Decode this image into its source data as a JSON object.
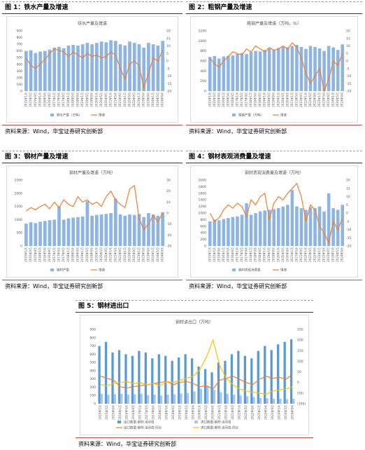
{
  "figures": [
    {
      "caption": "图 1：铁水产量及增速",
      "source": "资料来源：Wind，华宝证券研究创新部"
    },
    {
      "caption": "图 2：粗钢产量及增速",
      "source": "资料来源：Wind，华宝证券研究创新部"
    },
    {
      "caption": "图 3：钢材产量及增速",
      "source": "资料来源：Wind，华宝证券研究创新部"
    },
    {
      "caption": "图 4：钢材表观消费量及增速",
      "source": "资料来源：Wind，华宝证券研究创新部"
    },
    {
      "caption": "图 5：钢材进出口",
      "source": "资料来源：Wind，华宝证券研究创新部"
    }
  ],
  "chart_data": [
    {
      "type": "combo",
      "title": "铁水产量及增速",
      "grid": false,
      "categories": [
        "2015年1月",
        "2015年5月",
        "2015年9月",
        "2016年1月",
        "2016年5月",
        "2016年9月",
        "2017年1月",
        "2017年5月",
        "2017年9月",
        "2018年1月",
        "2018年5月",
        "2018年9月",
        "2019年1月",
        "2019年5月",
        "2019年9月",
        "2020年1月",
        "2020年5月",
        "2020年9月",
        "2021年1月",
        "2021年5月",
        "2021年9月",
        "2022年1月",
        "2022年5月",
        "2022年9月",
        "2023年1月",
        "2023年5月",
        "2023年9月",
        "2024年1月",
        "2024年5月",
        "2024年9月"
      ],
      "ylim": [
        0,
        900
      ],
      "yticks": [
        0,
        100,
        200,
        300,
        400,
        500,
        600,
        700,
        800,
        900
      ],
      "y2lim": [
        -20,
        20
      ],
      "y2ticks": [
        -20,
        -15,
        -10,
        -5,
        0,
        5,
        10,
        15,
        20
      ],
      "series": [
        {
          "name": "铁水产量（万吨）",
          "type": "bar",
          "color": "#8db4e2",
          "values": [
            600,
            610,
            570,
            590,
            600,
            620,
            650,
            660,
            640,
            680,
            690,
            680,
            700,
            720,
            700,
            720,
            740,
            730,
            760,
            750,
            700,
            680,
            740,
            720,
            700,
            650,
            720,
            700,
            680,
            750
          ]
        },
        {
          "name": "增速",
          "type": "line",
          "axis": "y2",
          "color": "#ed7d31",
          "values": [
            2,
            -3,
            -5,
            -2,
            1,
            5,
            8,
            7,
            6,
            3,
            6,
            4,
            2,
            5,
            3,
            4,
            2,
            3,
            6,
            4,
            -5,
            -12,
            -2,
            0,
            -3,
            -18,
            -8,
            2,
            0,
            7
          ]
        }
      ]
    },
    {
      "type": "combo",
      "title": "粗钢产量及增速（万吨，%）",
      "grid": false,
      "categories": [
        "2015年1月",
        "2015年5月",
        "2015年9月",
        "2016年1月",
        "2016年5月",
        "2016年9月",
        "2017年1月",
        "2017年5月",
        "2017年9月",
        "2018年1月",
        "2018年5月",
        "2018年9月",
        "2019年1月",
        "2019年5月",
        "2019年9月",
        "2020年1月",
        "2020年5月",
        "2020年9月",
        "2021年1月",
        "2021年5月",
        "2021年9月",
        "2022年1月",
        "2022年5月",
        "2022年9月",
        "2023年1月",
        "2023年5月",
        "2023年9月",
        "2024年1月",
        "2024年5月",
        "2024年9月"
      ],
      "ylim": [
        0,
        1200
      ],
      "yticks": [
        0,
        200,
        400,
        600,
        800,
        1000,
        1200
      ],
      "y2lim": [
        -20,
        20
      ],
      "y2ticks": [
        -20,
        -15,
        -10,
        -5,
        0,
        5,
        10,
        15,
        20
      ],
      "series": [
        {
          "name": "粗钢产量（万吨）",
          "type": "bar",
          "color": "#8db4e2",
          "values": [
            680,
            700,
            650,
            690,
            700,
            710,
            740,
            760,
            740,
            780,
            800,
            790,
            820,
            850,
            830,
            860,
            880,
            870,
            900,
            920,
            880,
            840,
            900,
            880,
            850,
            800,
            900,
            870,
            820,
            930
          ]
        },
        {
          "name": "增速",
          "type": "line",
          "axis": "y2",
          "color": "#ed7d31",
          "values": [
            2,
            -2,
            -4,
            0,
            3,
            6,
            5,
            4,
            8,
            6,
            10,
            8,
            6,
            9,
            7,
            8,
            10,
            8,
            12,
            9,
            2,
            -8,
            -15,
            -10,
            -5,
            -20,
            -12,
            0,
            -3,
            5
          ]
        }
      ]
    },
    {
      "type": "combo",
      "title": "钢材产量及增速（万吨）",
      "grid": false,
      "categories": [
        "2015年1月",
        "2015年5月",
        "2015年9月",
        "2016年1月",
        "2016年5月",
        "2016年9月",
        "2017年1月",
        "2017年5月",
        "2017年9月",
        "2018年1月",
        "2018年5月",
        "2018年9月",
        "2019年1月",
        "2019年5月",
        "2019年9月",
        "2020年1月",
        "2020年5月",
        "2020年9月",
        "2021年1月",
        "2021年5月",
        "2021年9月",
        "2022年1月",
        "2022年5月",
        "2022年9月",
        "2023年1月",
        "2023年5月",
        "2023年9月",
        "2024年1月",
        "2024年5月",
        "2024年9月"
      ],
      "ylim": [
        0,
        2500
      ],
      "yticks": [
        0,
        500,
        1000,
        1500,
        2000,
        2500
      ],
      "y2lim": [
        -30,
        30
      ],
      "y2ticks": [
        -30,
        -20,
        -10,
        0,
        10,
        20,
        30
      ],
      "series": [
        {
          "name": "钢材产量",
          "type": "bar",
          "color": "#8db4e2",
          "values": [
            850,
            900,
            870,
            920,
            950,
            980,
            1000,
            1500,
            1000,
            1050,
            1080,
            1100,
            1120,
            1700,
            1150,
            1180,
            1200,
            1220,
            1250,
            1800,
            1200,
            1150,
            1200,
            1180,
            1220,
            1100,
            1250,
            1200,
            1150,
            1280
          ]
        },
        {
          "name": "增速",
          "type": "line",
          "axis": "y2",
          "color": "#ed7d31",
          "values": [
            2,
            5,
            3,
            6,
            8,
            4,
            10,
            5,
            12,
            8,
            6,
            15,
            10,
            12,
            8,
            10,
            6,
            15,
            20,
            12,
            8,
            5,
            22,
            25,
            -5,
            -15,
            -10,
            -2,
            -8,
            0
          ]
        }
      ]
    },
    {
      "type": "combo",
      "title": "钢材表观消费量及增速（万吨）",
      "grid": false,
      "categories": [
        "2015年1月",
        "2015年5月",
        "2015年9月",
        "2016年1月",
        "2016年5月",
        "2016年9月",
        "2017年1月",
        "2017年5月",
        "2017年9月",
        "2018年1月",
        "2018年5月",
        "2018年9月",
        "2019年1月",
        "2019年5月",
        "2019年9月",
        "2020年1月",
        "2020年5月",
        "2020年9月",
        "2021年1月",
        "2021年5月",
        "2021年9月",
        "2022年1月",
        "2022年5月",
        "2022年9月",
        "2023年1月",
        "2023年5月",
        "2023年9月",
        "2024年1月",
        "2024年5月",
        "2024年9月"
      ],
      "ylim": [
        0,
        2000
      ],
      "yticks": [
        0,
        200,
        400,
        600,
        800,
        1000,
        1200,
        1400,
        1600,
        1800,
        2000
      ],
      "y2lim": [
        -20,
        20
      ],
      "y2ticks": [
        -20,
        -15,
        -10,
        -5,
        0,
        5,
        10,
        15,
        20
      ],
      "series": [
        {
          "name": "钢材表观消费量",
          "type": "bar",
          "color": "#8db4e2",
          "values": [
            750,
            800,
            780,
            820,
            850,
            880,
            900,
            950,
            1300,
            950,
            1000,
            1050,
            1080,
            1100,
            1120,
            1150,
            1200,
            1250,
            1700,
            1200,
            1150,
            1100,
            1180,
            1150,
            1200,
            1050,
            1600,
            1150,
            1100,
            1250
          ]
        },
        {
          "name": "增速",
          "type": "line",
          "axis": "y2",
          "color": "#ed7d31",
          "values": [
            0,
            -5,
            -3,
            2,
            5,
            3,
            6,
            4,
            -2,
            8,
            5,
            10,
            12,
            -4,
            6,
            10,
            8,
            12,
            15,
            18,
            10,
            -5,
            5,
            2,
            -8,
            -12,
            -18,
            -5,
            -10,
            -3
          ]
        }
      ]
    },
    {
      "type": "combo",
      "title": "钢材进出口（万吨）",
      "grid": false,
      "categories": [
        "2015年1月",
        "2015年5月",
        "2015年9月",
        "2016年1月",
        "2016年5月",
        "2016年9月",
        "2017年1月",
        "2017年5月",
        "2017年9月",
        "2018年1月",
        "2018年5月",
        "2018年9月",
        "2019年1月",
        "2019年5月",
        "2019年9月",
        "2020年1月",
        "2020年5月",
        "2020年9月",
        "2021年1月",
        "2021年5月",
        "2021年9月",
        "2022年1月",
        "2022年5月",
        "2022年9月",
        "2023年1月",
        "2023年5月",
        "2023年9月",
        "2024年1月",
        "2024年5月",
        "2024年9月"
      ],
      "ylim": [
        0,
        900
      ],
      "yticks": [
        0,
        100,
        200,
        300,
        400,
        500,
        600,
        700,
        800,
        900
      ],
      "y2lim": [
        -100,
        250
      ],
      "y2ticks": [
        {
          "value": -100,
          "label": "(100)"
        },
        {
          "value": -50,
          "label": "(50)"
        },
        0,
        50,
        100,
        150,
        200,
        250
      ],
      "series": [
        {
          "name": "出口数量:钢材:当月值",
          "type": "bar",
          "color": "#5b9bd5",
          "values": [
            700,
            750,
            620,
            650,
            600,
            580,
            640,
            620,
            550,
            600,
            580,
            520,
            560,
            600,
            550,
            450,
            420,
            380,
            500,
            520,
            600,
            640,
            580,
            550,
            640,
            700,
            650,
            720,
            750,
            780
          ]
        },
        {
          "name": "进口数量:钢材:当月值",
          "type": "bar",
          "color": "#a9c4e4",
          "values": [
            120,
            110,
            115,
            120,
            110,
            115,
            120,
            105,
            110,
            100,
            110,
            115,
            125,
            130,
            150,
            180,
            210,
            170,
            140,
            120,
            110,
            100,
            90,
            80,
            70,
            65,
            60,
            60,
            55,
            60
          ]
        },
        {
          "name": "出口数量:钢材:当月值:同比",
          "type": "line",
          "axis": "y2",
          "color": "#ed7d31",
          "values": [
            30,
            20,
            10,
            -20,
            -25,
            -20,
            -15,
            -10,
            -5,
            0,
            5,
            -10,
            0,
            5,
            -5,
            -20,
            -15,
            -30,
            10,
            20,
            30,
            15,
            0,
            -10,
            15,
            30,
            20,
            25,
            15,
            40
          ]
        },
        {
          "name": "进口数量:钢材:当月值:同比",
          "type": "line",
          "axis": "y2",
          "color": "#ffc000",
          "values": [
            -10,
            -15,
            -5,
            0,
            5,
            -5,
            0,
            -10,
            -5,
            -15,
            5,
            0,
            10,
            20,
            30,
            60,
            120,
            200,
            80,
            20,
            -10,
            -30,
            -40,
            -45,
            -50,
            -55,
            -40,
            -35,
            -30,
            -20
          ]
        }
      ]
    }
  ]
}
